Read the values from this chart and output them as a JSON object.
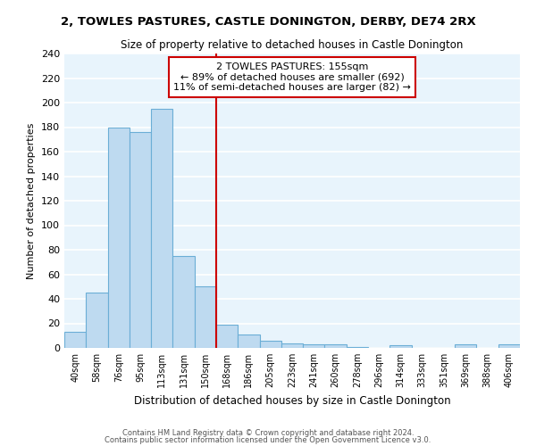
{
  "title1": "2, TOWLES PASTURES, CASTLE DONINGTON, DERBY, DE74 2RX",
  "title2": "Size of property relative to detached houses in Castle Donington",
  "xlabel": "Distribution of detached houses by size in Castle Donington",
  "ylabel": "Number of detached properties",
  "bar_labels": [
    "40sqm",
    "58sqm",
    "76sqm",
    "95sqm",
    "113sqm",
    "131sqm",
    "150sqm",
    "168sqm",
    "186sqm",
    "205sqm",
    "223sqm",
    "241sqm",
    "260sqm",
    "278sqm",
    "296sqm",
    "314sqm",
    "333sqm",
    "351sqm",
    "369sqm",
    "388sqm",
    "406sqm"
  ],
  "bar_values": [
    13,
    45,
    180,
    176,
    195,
    75,
    50,
    19,
    11,
    6,
    4,
    3,
    3,
    1,
    0,
    2,
    0,
    0,
    3,
    0,
    3
  ],
  "bar_color": "#BEDAF0",
  "bar_edge_color": "#6BAED6",
  "bg_color": "#E8F4FC",
  "grid_color": "#FFFFFF",
  "vline_x": 6.5,
  "vline_color": "#CC0000",
  "annotation_line1": "2 TOWLES PASTURES: 155sqm",
  "annotation_line2": "← 89% of detached houses are smaller (692)",
  "annotation_line3": "11% of semi-detached houses are larger (82) →",
  "annotation_box_color": "#CC0000",
  "ylim": [
    0,
    240
  ],
  "yticks": [
    0,
    20,
    40,
    60,
    80,
    100,
    120,
    140,
    160,
    180,
    200,
    220,
    240
  ],
  "footnote1": "Contains HM Land Registry data © Crown copyright and database right 2024.",
  "footnote2": "Contains public sector information licensed under the Open Government Licence v3.0."
}
